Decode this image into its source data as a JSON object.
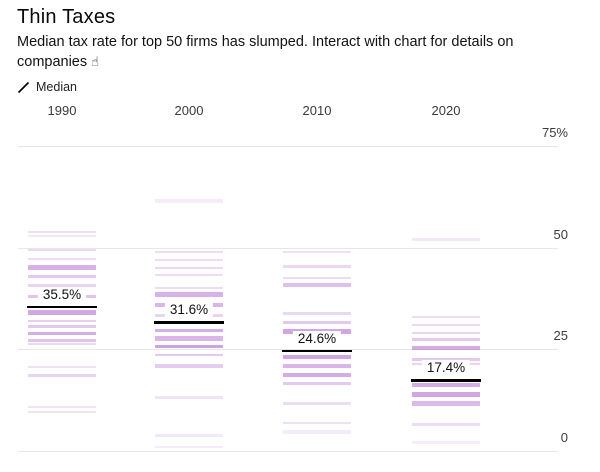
{
  "header": {
    "title": "Thin Taxes",
    "subtitle": "Median tax rate for top 50 firms has slumped. Interact with chart for details on companies",
    "tap_icon": "☝"
  },
  "legend": {
    "label": "Median",
    "marker": "median-slash"
  },
  "chart_data": {
    "type": "strip",
    "title": "Thin Taxes",
    "subtitle": "Median tax rate for top 50 firms has slumped. Interact with chart for details on companies",
    "unit": "%",
    "categories": [
      "1990",
      "2000",
      "2010",
      "2020"
    ],
    "medians": [
      35.5,
      31.6,
      24.6,
      17.4
    ],
    "median_labels": [
      "35.5%",
      "31.6%",
      "24.6%",
      "17.4%"
    ],
    "y_axis": {
      "position": "right",
      "range": [
        0,
        75
      ],
      "ticks": [
        75,
        50,
        25,
        0
      ],
      "tick_labels": [
        "75%",
        "50",
        "25",
        "0"
      ]
    },
    "grid": true,
    "colors": {
      "strip_rgb": "155,60,195",
      "median_line": "#000000",
      "gridline": "#e7e7e7"
    },
    "series": [
      {
        "name": "1990",
        "median": 35.5,
        "strips": [
          {
            "v": 53.8,
            "o": 0.16,
            "h": 2
          },
          {
            "v": 52.8,
            "o": 0.12,
            "h": 2
          },
          {
            "v": 49.5,
            "o": 0.2,
            "h": 2
          },
          {
            "v": 47.3,
            "o": 0.18,
            "h": 2
          },
          {
            "v": 45.2,
            "o": 0.4,
            "h": 5
          },
          {
            "v": 43.0,
            "o": 0.28,
            "h": 3
          },
          {
            "v": 40.6,
            "o": 0.22,
            "h": 3
          },
          {
            "v": 38.0,
            "o": 0.3,
            "h": 3
          },
          {
            "v": 34.1,
            "o": 0.45,
            "h": 5
          },
          {
            "v": 32.0,
            "o": 0.25,
            "h": 2
          },
          {
            "v": 30.6,
            "o": 0.28,
            "h": 3
          },
          {
            "v": 29.0,
            "o": 0.42,
            "h": 3
          },
          {
            "v": 27.1,
            "o": 0.3,
            "h": 3
          },
          {
            "v": 26.3,
            "o": 0.2,
            "h": 2
          },
          {
            "v": 20.6,
            "o": 0.16,
            "h": 2
          },
          {
            "v": 18.6,
            "o": 0.22,
            "h": 3
          },
          {
            "v": 10.8,
            "o": 0.14,
            "h": 2
          },
          {
            "v": 9.7,
            "o": 0.14,
            "h": 2
          }
        ]
      },
      {
        "name": "2000",
        "median": 31.6,
        "strips": [
          {
            "v": 61.5,
            "o": 0.1,
            "h": 4
          },
          {
            "v": 48.9,
            "o": 0.18,
            "h": 2
          },
          {
            "v": 47.0,
            "o": 0.18,
            "h": 2
          },
          {
            "v": 45.0,
            "o": 0.2,
            "h": 2
          },
          {
            "v": 43.4,
            "o": 0.18,
            "h": 2
          },
          {
            "v": 40.2,
            "o": 0.18,
            "h": 2
          },
          {
            "v": 38.6,
            "o": 0.4,
            "h": 5
          },
          {
            "v": 35.9,
            "o": 0.38,
            "h": 4
          },
          {
            "v": 33.4,
            "o": 0.22,
            "h": 3
          },
          {
            "v": 29.7,
            "o": 0.42,
            "h": 3
          },
          {
            "v": 27.6,
            "o": 0.38,
            "h": 5
          },
          {
            "v": 25.6,
            "o": 0.48,
            "h": 3
          },
          {
            "v": 23.6,
            "o": 0.28,
            "h": 2
          },
          {
            "v": 20.9,
            "o": 0.26,
            "h": 4
          },
          {
            "v": 13.2,
            "o": 0.14,
            "h": 3
          },
          {
            "v": 3.9,
            "o": 0.12,
            "h": 3
          },
          {
            "v": 1.0,
            "o": 0.1,
            "h": 2
          }
        ]
      },
      {
        "name": "2010",
        "median": 24.6,
        "strips": [
          {
            "v": 48.9,
            "o": 0.16,
            "h": 2
          },
          {
            "v": 45.4,
            "o": 0.2,
            "h": 3
          },
          {
            "v": 42.5,
            "o": 0.18,
            "h": 2
          },
          {
            "v": 40.8,
            "o": 0.32,
            "h": 4
          },
          {
            "v": 33.9,
            "o": 0.2,
            "h": 3
          },
          {
            "v": 31.5,
            "o": 0.28,
            "h": 3
          },
          {
            "v": 29.3,
            "o": 0.46,
            "h": 5
          },
          {
            "v": 23.1,
            "o": 0.46,
            "h": 4
          },
          {
            "v": 20.9,
            "o": 0.38,
            "h": 4
          },
          {
            "v": 18.7,
            "o": 0.42,
            "h": 4
          },
          {
            "v": 16.6,
            "o": 0.28,
            "h": 3
          },
          {
            "v": 11.8,
            "o": 0.18,
            "h": 3
          },
          {
            "v": 7.0,
            "o": 0.16,
            "h": 2
          },
          {
            "v": 4.6,
            "o": 0.1,
            "h": 4
          }
        ]
      },
      {
        "name": "2020",
        "median": 17.4,
        "strips": [
          {
            "v": 52.1,
            "o": 0.12,
            "h": 3
          },
          {
            "v": 32.9,
            "o": 0.18,
            "h": 2
          },
          {
            "v": 31.0,
            "o": 0.2,
            "h": 2
          },
          {
            "v": 29.0,
            "o": 0.22,
            "h": 2
          },
          {
            "v": 27.3,
            "o": 0.28,
            "h": 3
          },
          {
            "v": 25.3,
            "o": 0.42,
            "h": 4
          },
          {
            "v": 22.6,
            "o": 0.28,
            "h": 3
          },
          {
            "v": 21.5,
            "o": 0.22,
            "h": 2
          },
          {
            "v": 16.2,
            "o": 0.42,
            "h": 4
          },
          {
            "v": 14.0,
            "o": 0.46,
            "h": 5
          },
          {
            "v": 11.6,
            "o": 0.36,
            "h": 5
          },
          {
            "v": 6.4,
            "o": 0.18,
            "h": 3
          },
          {
            "v": 2.2,
            "o": 0.1,
            "h": 3
          }
        ]
      }
    ]
  }
}
